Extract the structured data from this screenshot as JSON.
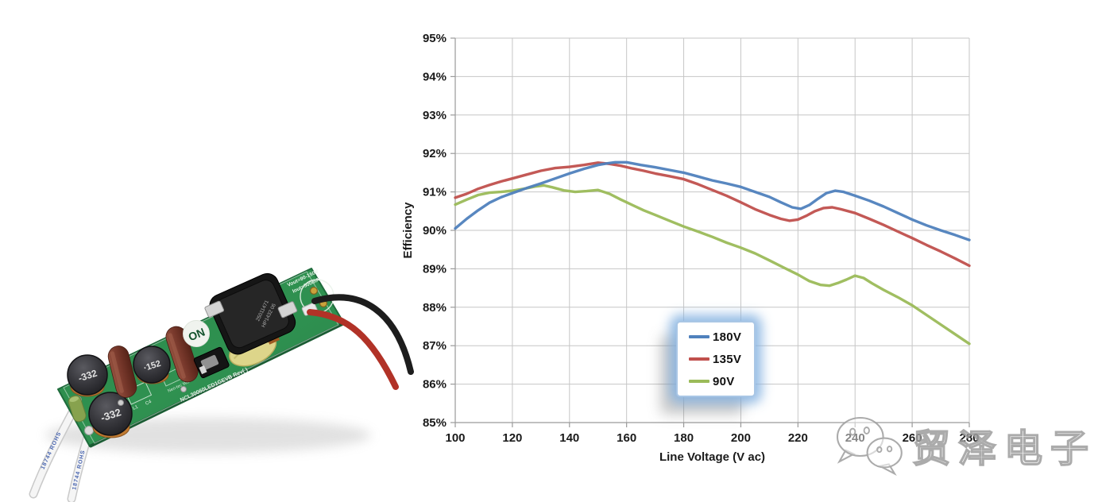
{
  "figure": {
    "background": "#ffffff"
  },
  "pcb_photo": {
    "description": "LED driver evaluation board photo",
    "board_color": "#2f9150",
    "texts": {
      "on_logo": "ON",
      "inductor_a": "-332",
      "inductor_b": "-332",
      "inductor_c": "·152",
      "transformer_line1": "25011471",
      "transformer_line2": "HP1432 06",
      "model_small": "Neo-tec WB",
      "model": "NCL30060LED1GEVB  Rev(   )",
      "vout": "Vout=90-150V",
      "iout": "Iout=500mA",
      "wire_marking_a": "18744 ROHS",
      "wire_marking_b": "18744 ROHS",
      "ref_l1": "L1",
      "ref_c4": "C4"
    }
  },
  "chart_data": {
    "type": "line",
    "title": "",
    "xlabel": "Line Voltage (V ac)",
    "ylabel": "Efficiency",
    "xlim": [
      100,
      280
    ],
    "ylim_percent": [
      85,
      95
    ],
    "x_ticks": [
      100,
      120,
      140,
      160,
      180,
      200,
      220,
      240,
      260,
      280
    ],
    "y_ticks_percent": [
      85,
      86,
      87,
      88,
      89,
      90,
      91,
      92,
      93,
      94,
      95
    ],
    "grid": true,
    "legend_position": "inside-lower-right",
    "colors": {
      "grid": "#c6c6c6",
      "axis": "#9a9a9a",
      "tick_text": "#1a1a1a"
    },
    "series": [
      {
        "name": "180V",
        "color": "#4F81BD",
        "points": [
          [
            100,
            90.05
          ],
          [
            104,
            90.3
          ],
          [
            108,
            90.52
          ],
          [
            112,
            90.72
          ],
          [
            116,
            90.86
          ],
          [
            120,
            90.97
          ],
          [
            125,
            91.1
          ],
          [
            130,
            91.22
          ],
          [
            135,
            91.35
          ],
          [
            140,
            91.48
          ],
          [
            145,
            91.6
          ],
          [
            150,
            91.7
          ],
          [
            153,
            91.74
          ],
          [
            156,
            91.77
          ],
          [
            160,
            91.77
          ],
          [
            165,
            91.7
          ],
          [
            170,
            91.64
          ],
          [
            175,
            91.57
          ],
          [
            180,
            91.5
          ],
          [
            185,
            91.4
          ],
          [
            190,
            91.3
          ],
          [
            195,
            91.22
          ],
          [
            200,
            91.13
          ],
          [
            205,
            91.0
          ],
          [
            210,
            90.87
          ],
          [
            214,
            90.73
          ],
          [
            218,
            90.6
          ],
          [
            221,
            90.56
          ],
          [
            224,
            90.66
          ],
          [
            227,
            90.82
          ],
          [
            230,
            90.97
          ],
          [
            233,
            91.03
          ],
          [
            236,
            91.0
          ],
          [
            240,
            90.9
          ],
          [
            245,
            90.77
          ],
          [
            250,
            90.62
          ],
          [
            255,
            90.45
          ],
          [
            260,
            90.28
          ],
          [
            265,
            90.13
          ],
          [
            270,
            90.0
          ],
          [
            275,
            89.88
          ],
          [
            280,
            89.75
          ]
        ]
      },
      {
        "name": "135V",
        "color": "#C0504D",
        "points": [
          [
            100,
            90.85
          ],
          [
            104,
            90.95
          ],
          [
            108,
            91.08
          ],
          [
            112,
            91.18
          ],
          [
            116,
            91.27
          ],
          [
            120,
            91.35
          ],
          [
            125,
            91.45
          ],
          [
            130,
            91.55
          ],
          [
            135,
            91.62
          ],
          [
            140,
            91.65
          ],
          [
            145,
            91.7
          ],
          [
            150,
            91.76
          ],
          [
            154,
            91.73
          ],
          [
            158,
            91.68
          ],
          [
            162,
            91.61
          ],
          [
            166,
            91.55
          ],
          [
            170,
            91.48
          ],
          [
            175,
            91.41
          ],
          [
            180,
            91.33
          ],
          [
            185,
            91.2
          ],
          [
            190,
            91.05
          ],
          [
            195,
            90.9
          ],
          [
            200,
            90.73
          ],
          [
            205,
            90.55
          ],
          [
            210,
            90.4
          ],
          [
            214,
            90.3
          ],
          [
            217,
            90.25
          ],
          [
            220,
            90.28
          ],
          [
            223,
            90.38
          ],
          [
            226,
            90.5
          ],
          [
            229,
            90.58
          ],
          [
            232,
            90.6
          ],
          [
            235,
            90.55
          ],
          [
            240,
            90.45
          ],
          [
            245,
            90.3
          ],
          [
            250,
            90.14
          ],
          [
            255,
            89.97
          ],
          [
            260,
            89.8
          ],
          [
            265,
            89.62
          ],
          [
            270,
            89.45
          ],
          [
            275,
            89.27
          ],
          [
            280,
            89.08
          ]
        ]
      },
      {
        "name": "90V",
        "color": "#9BBB59",
        "points": [
          [
            100,
            90.67
          ],
          [
            104,
            90.8
          ],
          [
            108,
            90.92
          ],
          [
            112,
            90.98
          ],
          [
            116,
            91.0
          ],
          [
            120,
            91.03
          ],
          [
            124,
            91.08
          ],
          [
            128,
            91.14
          ],
          [
            131,
            91.17
          ],
          [
            134,
            91.12
          ],
          [
            138,
            91.04
          ],
          [
            142,
            91.0
          ],
          [
            146,
            91.02
          ],
          [
            150,
            91.05
          ],
          [
            154,
            90.95
          ],
          [
            158,
            90.8
          ],
          [
            162,
            90.66
          ],
          [
            166,
            90.52
          ],
          [
            170,
            90.4
          ],
          [
            175,
            90.25
          ],
          [
            180,
            90.1
          ],
          [
            185,
            89.97
          ],
          [
            190,
            89.83
          ],
          [
            195,
            89.68
          ],
          [
            200,
            89.55
          ],
          [
            205,
            89.4
          ],
          [
            210,
            89.22
          ],
          [
            215,
            89.03
          ],
          [
            220,
            88.85
          ],
          [
            224,
            88.68
          ],
          [
            228,
            88.58
          ],
          [
            231,
            88.56
          ],
          [
            234,
            88.63
          ],
          [
            237,
            88.72
          ],
          [
            240,
            88.82
          ],
          [
            243,
            88.76
          ],
          [
            246,
            88.62
          ],
          [
            250,
            88.45
          ],
          [
            255,
            88.26
          ],
          [
            260,
            88.05
          ],
          [
            265,
            87.8
          ],
          [
            270,
            87.55
          ],
          [
            275,
            87.3
          ],
          [
            280,
            87.05
          ]
        ]
      }
    ]
  },
  "watermark": {
    "text": "贸泽电子",
    "icon": "wechat-logo",
    "color": "#9d9d9d"
  }
}
